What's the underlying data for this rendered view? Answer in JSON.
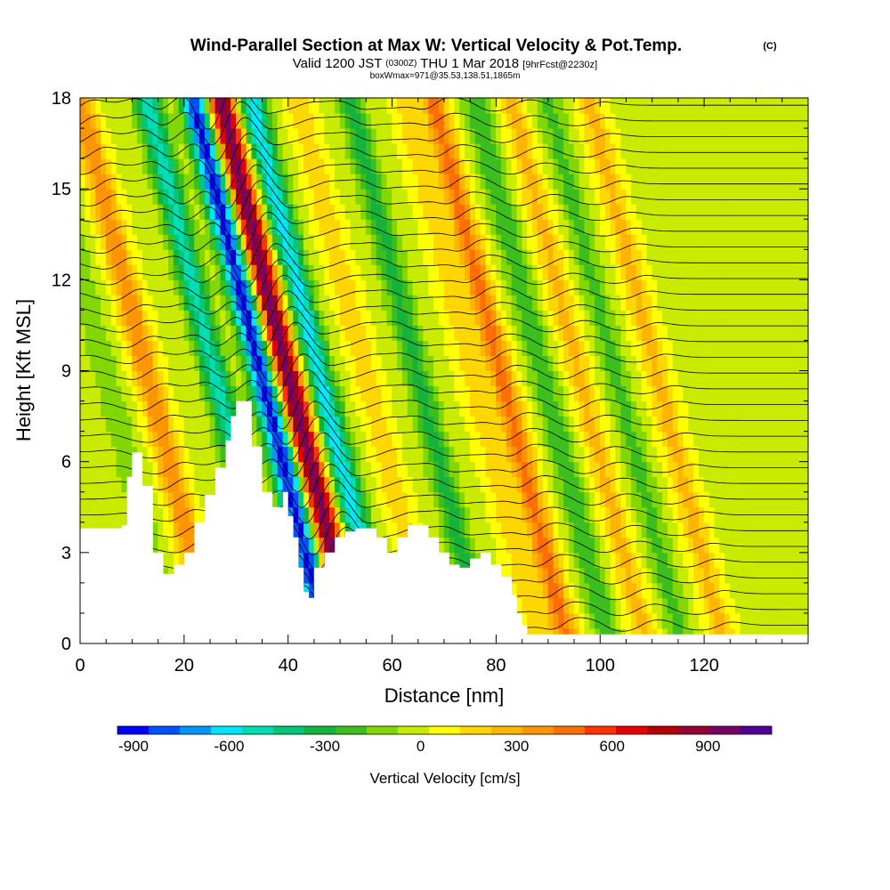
{
  "chart_data": {
    "type": "heatmap",
    "title": "Wind-Parallel Section at Max W: Vertical Velocity & Pot.Temp.",
    "title_mark": "(C)",
    "subtitle_main": "Valid 1200 JST",
    "subtitle_small_1": "(0300Z)",
    "subtitle_mid": "THU 1 Mar 2018",
    "subtitle_small_2": "[9hrFcst@2230z]",
    "subtitle_line2": "boxWmax=971@35.53,138.51,1865m",
    "xlabel": "Distance [nm]",
    "ylabel": "Height [Kft MSL]",
    "xlim": [
      0,
      140
    ],
    "ylim": [
      0,
      18
    ],
    "x_ticks": [
      "0",
      "20",
      "40",
      "60",
      "80",
      "100",
      "120"
    ],
    "y_ticks": [
      "0",
      "3",
      "6",
      "9",
      "12",
      "15",
      "18"
    ],
    "colorbar": {
      "label": "Vertical Velocity [cm/s]",
      "range": [
        -950,
        1100
      ],
      "tick_labels": [
        "-900",
        "-600",
        "-300",
        "0",
        "300",
        "600",
        "900"
      ],
      "colors": [
        "#0000ff",
        "#0050ff",
        "#0096ff",
        "#00e6ff",
        "#00dcb4",
        "#00c878",
        "#14b43c",
        "#3cbe1e",
        "#82d700",
        "#c8eb00",
        "#ffff00",
        "#ffd700",
        "#ffb400",
        "#ff9600",
        "#ff6e00",
        "#ff3200",
        "#e60000",
        "#b40000",
        "#960032",
        "#780064",
        "#500096"
      ]
    },
    "w_ridges": [
      {
        "x": 12,
        "w": -150
      },
      {
        "x": 20,
        "w": 400
      },
      {
        "x": 33,
        "w": -500
      },
      {
        "x": 42,
        "w": -900
      },
      {
        "x": 47,
        "w": 971
      },
      {
        "x": 53,
        "w": -600
      },
      {
        "x": 62,
        "w": 200
      },
      {
        "x": 72,
        "w": -300
      },
      {
        "x": 82,
        "w": 150
      },
      {
        "x": 88,
        "w": 450
      },
      {
        "x": 96,
        "w": -250
      },
      {
        "x": 103,
        "w": 250
      },
      {
        "x": 110,
        "w": -200
      },
      {
        "x": 118,
        "w": 250
      }
    ],
    "terrain_kft": [
      [
        0,
        3.8
      ],
      [
        8,
        3.9
      ],
      [
        9,
        5.5
      ],
      [
        10,
        6.3
      ],
      [
        12,
        5.2
      ],
      [
        14,
        3.0
      ],
      [
        16,
        2.3
      ],
      [
        18,
        2.6
      ],
      [
        20,
        3.0
      ],
      [
        22,
        4.0
      ],
      [
        24,
        4.9
      ],
      [
        26,
        5.8
      ],
      [
        28,
        6.7
      ],
      [
        29,
        7.5
      ],
      [
        30,
        8.0
      ],
      [
        32,
        8.0
      ],
      [
        33,
        6.5
      ],
      [
        35,
        5.0
      ],
      [
        37,
        4.5
      ],
      [
        39,
        5.0
      ],
      [
        40,
        4.2
      ],
      [
        41,
        3.5
      ],
      [
        42,
        2.5
      ],
      [
        43,
        1.7
      ],
      [
        44,
        1.5
      ],
      [
        45,
        2.5
      ],
      [
        47,
        3.0
      ],
      [
        49,
        3.5
      ],
      [
        51,
        3.7
      ],
      [
        53,
        3.8
      ],
      [
        55,
        3.8
      ],
      [
        57,
        3.5
      ],
      [
        59,
        3.0
      ],
      [
        61,
        3.5
      ],
      [
        63,
        3.9
      ],
      [
        65,
        3.9
      ],
      [
        67,
        3.5
      ],
      [
        69,
        3.0
      ],
      [
        71,
        2.6
      ],
      [
        73,
        2.5
      ],
      [
        75,
        2.8
      ],
      [
        77,
        3.0
      ],
      [
        79,
        2.6
      ],
      [
        81,
        2.2
      ],
      [
        83,
        1.6
      ],
      [
        84,
        1.0
      ],
      [
        85,
        0.6
      ],
      [
        86,
        0.3
      ],
      [
        140,
        0.3
      ]
    ]
  }
}
